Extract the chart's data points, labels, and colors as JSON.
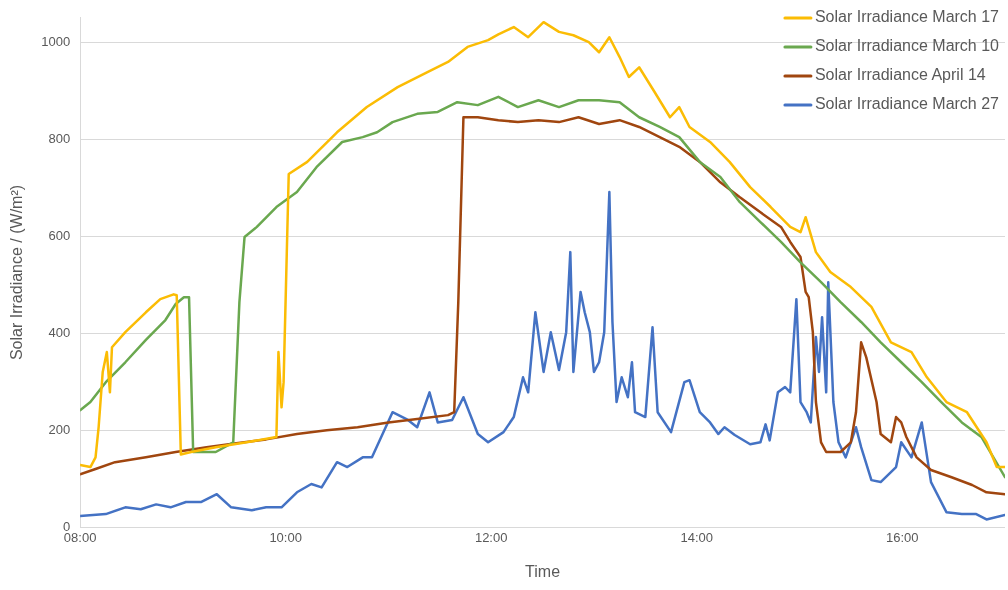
{
  "chart_data": {
    "type": "line",
    "xlabel": "Time",
    "ylabel": "Solar Irradiance / (W/m²)",
    "xlim": [
      8,
      17
    ],
    "xticks": [
      {
        "value": 8,
        "label": "08:00"
      },
      {
        "value": 10,
        "label": "10:00"
      },
      {
        "value": 12,
        "label": "12:00"
      },
      {
        "value": 14,
        "label": "14:00"
      },
      {
        "value": 16,
        "label": "16:00"
      }
    ],
    "ylim": [
      0,
      1050
    ],
    "yticks": [
      0,
      200,
      400,
      600,
      800,
      1000
    ],
    "grid": "y",
    "legend": "top right",
    "marker": "none",
    "line_style": "solid",
    "series": [
      {
        "name": "Solar Irradiance March 17",
        "color": "#fbbc04",
        "x": [
          8.0,
          8.1,
          8.15,
          8.18,
          8.22,
          8.26,
          8.29,
          8.31,
          8.44,
          8.64,
          8.78,
          8.91,
          8.94,
          8.98,
          9.08,
          9.32,
          9.62,
          9.91,
          9.93,
          9.96,
          9.98,
          10.03,
          10.21,
          10.5,
          10.79,
          11.09,
          11.38,
          11.58,
          11.77,
          11.97,
          12.07,
          12.22,
          12.36,
          12.51,
          12.66,
          12.8,
          12.95,
          13.05,
          13.15,
          13.25,
          13.34,
          13.44,
          13.59,
          13.74,
          13.83,
          13.93,
          14.13,
          14.32,
          14.52,
          14.72,
          14.91,
          15.01,
          15.06,
          15.16,
          15.3,
          15.5,
          15.7,
          15.89,
          16.09,
          16.24,
          16.43,
          16.63,
          16.82,
          16.92,
          17.0
        ],
        "values": [
          128,
          124,
          144,
          206,
          320,
          361,
          278,
          371,
          402,
          443,
          470,
          480,
          478,
          150,
          155,
          165,
          175,
          186,
          361,
          247,
          299,
          728,
          753,
          814,
          866,
          907,
          938,
          959,
          990,
          1004,
          1016,
          1031,
          1010,
          1041,
          1021,
          1014,
          1000,
          979,
          1010,
          969,
          928,
          948,
          897,
          845,
          866,
          825,
          794,
          753,
          701,
          660,
          619,
          608,
          639,
          567,
          526,
          495,
          454,
          381,
          361,
          309,
          258,
          237,
          175,
          124,
          124
        ]
      },
      {
        "name": "Solar Irradiance March 10",
        "color": "#6aa84f",
        "x": [
          8.0,
          8.1,
          8.25,
          8.44,
          8.64,
          8.83,
          8.93,
          9.01,
          9.06,
          9.1,
          9.32,
          9.49,
          9.55,
          9.6,
          9.72,
          9.91,
          10.11,
          10.3,
          10.55,
          10.75,
          10.89,
          11.04,
          11.28,
          11.48,
          11.67,
          11.87,
          12.07,
          12.26,
          12.46,
          12.66,
          12.85,
          13.05,
          13.25,
          13.44,
          13.64,
          13.83,
          14.03,
          14.23,
          14.42,
          14.62,
          14.82,
          15.01,
          15.21,
          15.4,
          15.6,
          15.79,
          15.99,
          16.19,
          16.38,
          16.58,
          16.77,
          17.0
        ],
        "values": [
          241,
          258,
          299,
          340,
          386,
          427,
          460,
          474,
          474,
          155,
          155,
          175,
          464,
          598,
          619,
          660,
          691,
          742,
          794,
          804,
          814,
          835,
          852,
          856,
          876,
          870,
          887,
          866,
          880,
          866,
          880,
          880,
          876,
          845,
          825,
          804,
          753,
          722,
          670,
          629,
          588,
          546,
          505,
          464,
          423,
          381,
          340,
          299,
          258,
          216,
          186,
          103
        ]
      },
      {
        "name": "Solar Irradiance April 14",
        "color": "#a0460f",
        "x": [
          8.0,
          8.15,
          8.34,
          8.64,
          8.93,
          9.23,
          9.52,
          9.81,
          10.11,
          10.4,
          10.7,
          11.0,
          11.28,
          11.58,
          11.64,
          11.68,
          11.73,
          11.87,
          12.07,
          12.26,
          12.46,
          12.66,
          12.85,
          13.05,
          13.25,
          13.44,
          13.64,
          13.83,
          14.03,
          14.23,
          14.42,
          14.62,
          14.82,
          14.91,
          15.01,
          15.06,
          15.09,
          15.13,
          15.16,
          15.21,
          15.26,
          15.4,
          15.5,
          15.55,
          15.6,
          15.65,
          15.75,
          15.79,
          15.89,
          15.94,
          15.99,
          16.04,
          16.14,
          16.28,
          16.48,
          16.68,
          16.82,
          17.0
        ],
        "values": [
          109,
          120,
          134,
          144,
          155,
          165,
          173,
          181,
          192,
          200,
          206,
          216,
          223,
          231,
          237,
          464,
          845,
          845,
          839,
          835,
          839,
          835,
          845,
          831,
          839,
          825,
          804,
          784,
          753,
          711,
          680,
          649,
          619,
          588,
          557,
          485,
          474,
          402,
          258,
          175,
          155,
          155,
          175,
          237,
          381,
          350,
          258,
          192,
          175,
          227,
          216,
          186,
          144,
          118,
          103,
          87,
          72,
          68
        ]
      },
      {
        "name": "Solar Irradiance March 27",
        "color": "#4472c4",
        "x": [
          8.0,
          8.25,
          8.44,
          8.59,
          8.74,
          8.88,
          9.03,
          9.18,
          9.33,
          9.47,
          9.67,
          9.81,
          9.96,
          10.11,
          10.25,
          10.35,
          10.5,
          10.6,
          10.75,
          10.84,
          11.04,
          11.19,
          11.28,
          11.4,
          11.48,
          11.62,
          11.73,
          11.87,
          11.97,
          12.12,
          12.22,
          12.31,
          12.36,
          12.43,
          12.51,
          12.58,
          12.66,
          12.73,
          12.77,
          12.8,
          12.87,
          12.91,
          12.96,
          13.0,
          13.05,
          13.1,
          13.15,
          13.18,
          13.22,
          13.27,
          13.33,
          13.37,
          13.4,
          13.5,
          13.57,
          13.62,
          13.75,
          13.88,
          13.93,
          14.03,
          14.13,
          14.21,
          14.27,
          14.37,
          14.52,
          14.62,
          14.67,
          14.71,
          14.79,
          14.86,
          14.91,
          14.97,
          15.01,
          15.07,
          15.11,
          15.16,
          15.19,
          15.22,
          15.26,
          15.28,
          15.33,
          15.38,
          15.45,
          15.55,
          15.6,
          15.7,
          15.79,
          15.94,
          15.99,
          16.09,
          16.19,
          16.28,
          16.43,
          16.58,
          16.72,
          16.82,
          17.0
        ],
        "values": [
          23,
          27,
          41,
          37,
          47,
          41,
          52,
          52,
          68,
          41,
          35,
          41,
          41,
          72,
          89,
          82,
          134,
          124,
          144,
          144,
          237,
          221,
          206,
          278,
          216,
          221,
          268,
          192,
          175,
          196,
          227,
          309,
          278,
          443,
          320,
          402,
          324,
          402,
          567,
          320,
          485,
          443,
          402,
          320,
          340,
          402,
          691,
          423,
          258,
          309,
          268,
          340,
          237,
          227,
          412,
          237,
          196,
          299,
          303,
          237,
          216,
          192,
          206,
          190,
          171,
          175,
          212,
          179,
          278,
          289,
          278,
          470,
          258,
          237,
          216,
          392,
          320,
          433,
          278,
          505,
          258,
          175,
          144,
          206,
          165,
          97,
          93,
          124,
          175,
          144,
          216,
          93,
          31,
          27,
          27,
          16,
          25
        ]
      }
    ]
  }
}
